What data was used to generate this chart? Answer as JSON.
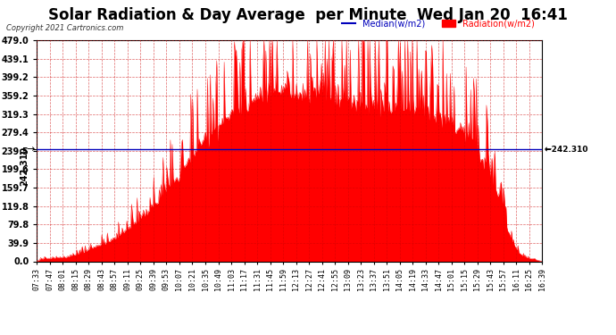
{
  "title": "Solar Radiation & Day Average  per Minute  Wed Jan 20  16:41",
  "copyright": "Copyright 2021 Cartronics.com",
  "legend_median_label": "Median(w/m2)",
  "legend_radiation_label": "Radiation(w/m2)",
  "median_value": 242.31,
  "median_label": "242.310",
  "ymin": 0.0,
  "ymax": 479.0,
  "ytick_labels": [
    "0.0",
    "39.9",
    "79.8",
    "119.8",
    "159.7",
    "199.6",
    "239.5",
    "279.4",
    "319.3",
    "359.2",
    "399.2",
    "439.1",
    "479.0"
  ],
  "ytick_values": [
    0.0,
    39.9,
    79.8,
    119.8,
    159.7,
    199.6,
    239.5,
    279.4,
    319.3,
    359.2,
    399.2,
    439.1,
    479.0
  ],
  "xtick_labels": [
    "07:33",
    "07:47",
    "08:01",
    "08:15",
    "08:29",
    "08:43",
    "08:57",
    "09:11",
    "09:25",
    "09:39",
    "09:53",
    "10:07",
    "10:21",
    "10:35",
    "10:49",
    "11:03",
    "11:17",
    "11:31",
    "11:45",
    "11:59",
    "12:13",
    "12:27",
    "12:41",
    "12:55",
    "13:09",
    "13:23",
    "13:37",
    "13:51",
    "14:05",
    "14:19",
    "14:33",
    "14:47",
    "15:01",
    "15:15",
    "15:29",
    "15:43",
    "15:57",
    "16:11",
    "16:25",
    "16:39"
  ],
  "bar_color": "#ff0000",
  "median_line_color": "#0000bb",
  "grid_color": "#cc0000",
  "grid_alpha": 0.5,
  "background_color": "#ffffff",
  "title_color": "#000000",
  "title_fontsize": 12,
  "num_minutes": 546,
  "seed": 123,
  "envelope": [
    5,
    6,
    7,
    8,
    10,
    15,
    20,
    28,
    35,
    42,
    50,
    60,
    75,
    90,
    105,
    120,
    140,
    160,
    180,
    205,
    230,
    255,
    270,
    290,
    305,
    320,
    330,
    340,
    350,
    358,
    365,
    368,
    370,
    372,
    370,
    368,
    365,
    362,
    358,
    355,
    352,
    348,
    345,
    342,
    340,
    338,
    335,
    332,
    330,
    325,
    320,
    315,
    308,
    300,
    290,
    278,
    260,
    235,
    200,
    155,
    100,
    50,
    20,
    8,
    5,
    3
  ],
  "spike_strength": 0.35,
  "spike_prob": 0.3
}
